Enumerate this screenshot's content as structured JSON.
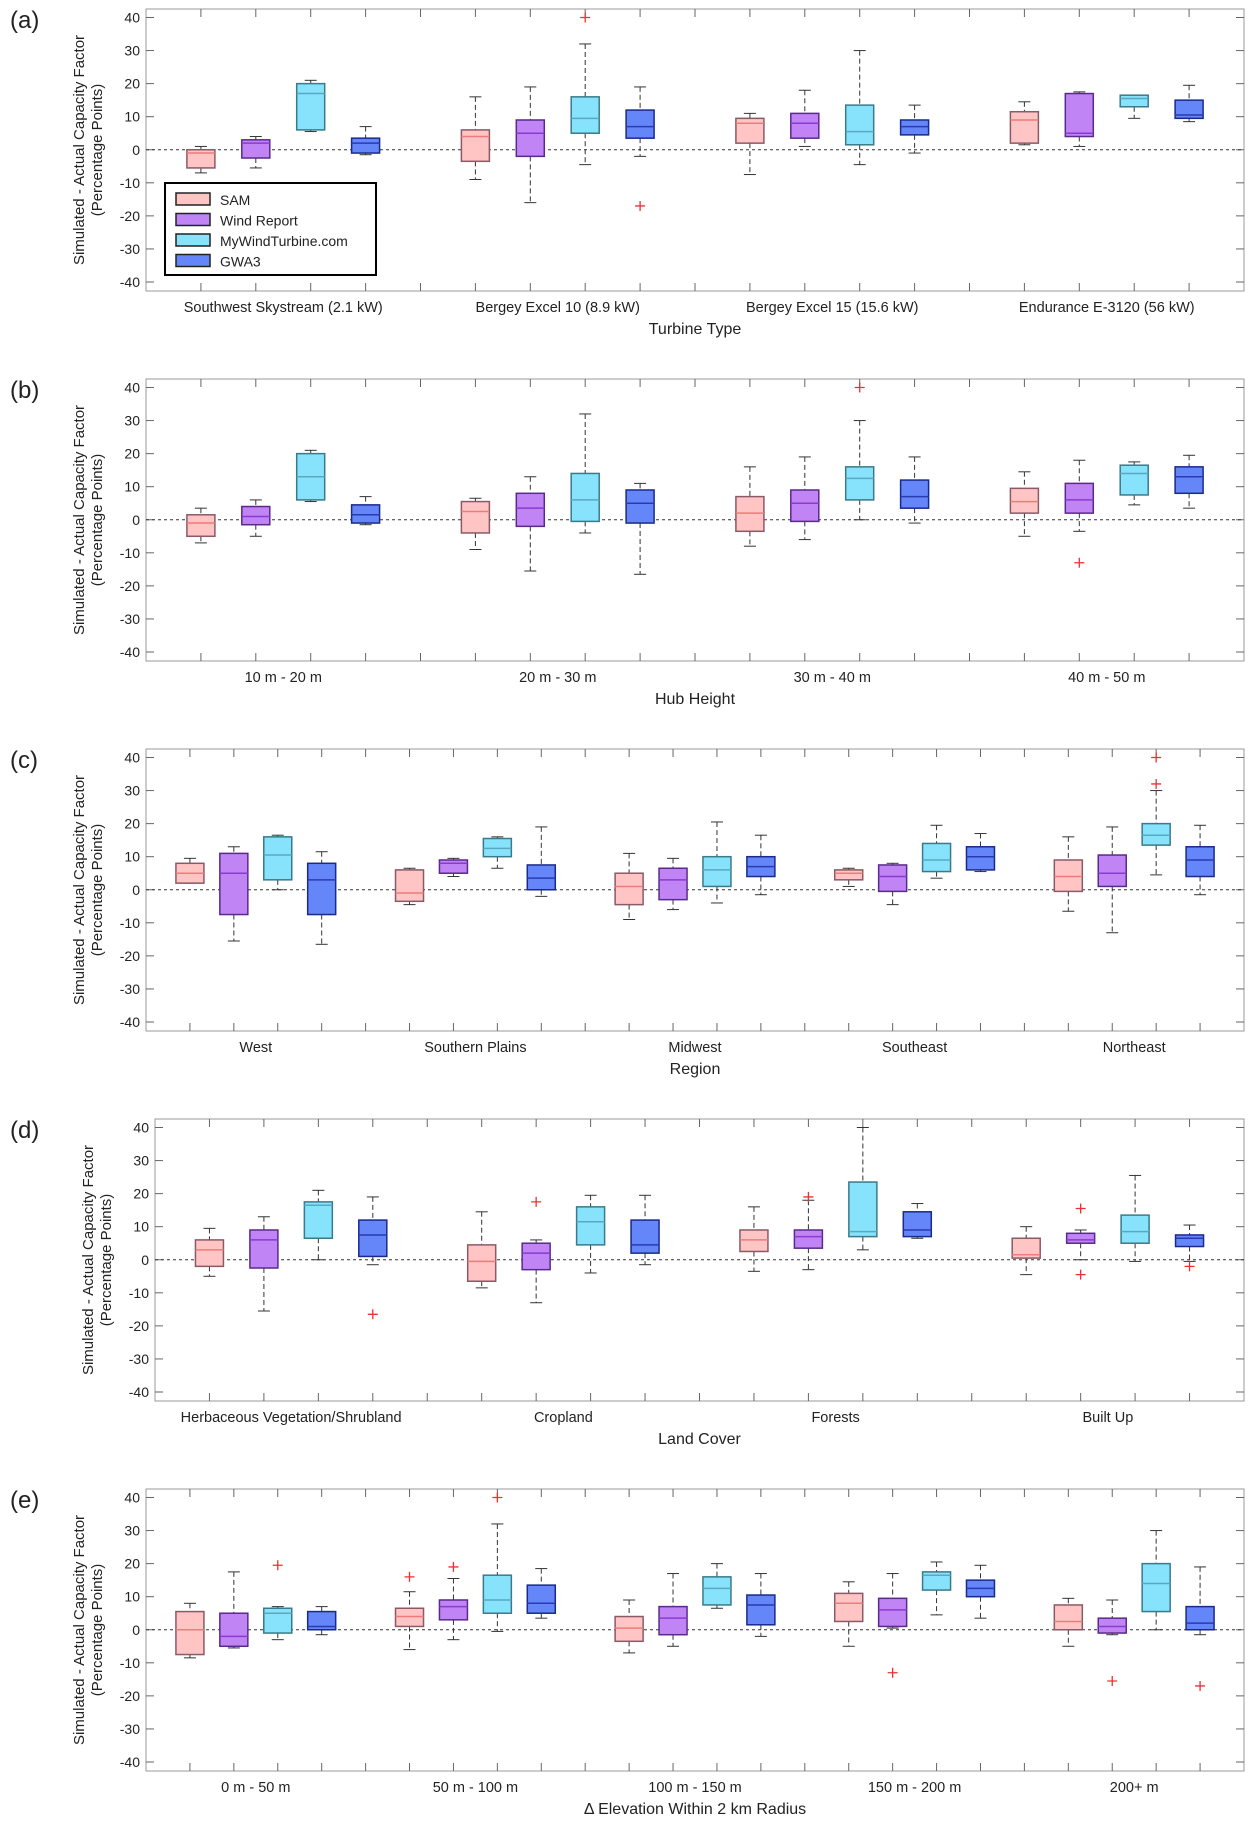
{
  "legend": {
    "entries": [
      "SAM",
      "Wind Report",
      "MyWindTurbine.com",
      "GWA3"
    ],
    "fills": [
      "#ffc4c4",
      "#c084f5",
      "#86e3fb",
      "#6486f8"
    ],
    "edges": [
      "#8a5a66",
      "#5a2a8a",
      "#3a7a8a",
      "#1a2a8a"
    ],
    "medians": [
      "#f07a7a",
      "#8a3ad0",
      "#5aa8c0",
      "#2a3ab0"
    ]
  },
  "stats_order": [
    "whisker_low",
    "q1",
    "median",
    "q3",
    "whisker_high"
  ],
  "chart_data": [
    {
      "type": "box",
      "panel": "(a)",
      "ylabel": [
        "Simulated - Actual Capacity Factor",
        "(Percentage Points)"
      ],
      "xlabel": "Turbine Type",
      "ylim": [
        -40,
        40
      ],
      "yticks": [
        40,
        30,
        20,
        10,
        0,
        -10,
        -20,
        -30,
        -40
      ],
      "legend": "lower-left",
      "categories": [
        "Southwest Skystream (2.1 kW)",
        "Bergey Excel 10 (8.9 kW)",
        "Bergey Excel 15 (15.6 kW)",
        "Endurance E-3120 (56 kW)"
      ],
      "series": [
        {
          "name": "SAM",
          "boxes": [
            [
              -7,
              -5.5,
              -1,
              0,
              1
            ],
            [
              -9,
              -3.5,
              4,
              6,
              16
            ],
            [
              -7.5,
              2,
              8,
              9.5,
              11
            ],
            [
              1.5,
              2,
              9,
              11.5,
              14.5
            ]
          ],
          "outliers": [
            [],
            [],
            [],
            []
          ]
        },
        {
          "name": "Wind Report",
          "boxes": [
            [
              -5.5,
              -2.5,
              2,
              3,
              4
            ],
            [
              -16,
              -2,
              5,
              9,
              19
            ],
            [
              1,
              3.5,
              8,
              11,
              18
            ],
            [
              1,
              4,
              5,
              17,
              17.5
            ]
          ],
          "outliers": [
            [],
            [],
            [],
            []
          ]
        },
        {
          "name": "MyWindTurbine.com",
          "boxes": [
            [
              5.5,
              6,
              17,
              20,
              21
            ],
            [
              -4.5,
              5,
              9.5,
              16,
              32
            ],
            [
              -4.5,
              1.5,
              5.5,
              13.5,
              30
            ],
            [
              9.5,
              13,
              15.5,
              16.5,
              16.5
            ]
          ],
          "outliers": [
            [],
            [
              40
            ],
            [],
            []
          ]
        },
        {
          "name": "GWA3",
          "boxes": [
            [
              -1.5,
              -1,
              2,
              3.5,
              7
            ],
            [
              -2,
              3.5,
              7,
              12,
              19
            ],
            [
              -1,
              4.5,
              7,
              9,
              13.5
            ],
            [
              8.5,
              9.5,
              10.5,
              15,
              19.5
            ]
          ],
          "outliers": [
            [],
            [
              -17
            ],
            [],
            []
          ]
        }
      ]
    },
    {
      "type": "box",
      "panel": "(b)",
      "ylabel": [
        "Simulated - Actual Capacity Factor",
        "(Percentage Points)"
      ],
      "xlabel": "Hub Height",
      "ylim": [
        -40,
        40
      ],
      "yticks": [
        40,
        30,
        20,
        10,
        0,
        -10,
        -20,
        -30,
        -40
      ],
      "categories": [
        "10 m - 20 m",
        "20 m - 30 m",
        "30 m - 40 m",
        "40 m - 50 m"
      ],
      "series": [
        {
          "name": "SAM",
          "boxes": [
            [
              -7,
              -5,
              -1,
              1.5,
              3.5
            ],
            [
              -9,
              -4,
              2.5,
              5.5,
              6.5
            ],
            [
              -8,
              -3.5,
              2,
              7,
              16
            ],
            [
              -5,
              2,
              5.5,
              9.5,
              14.5
            ]
          ],
          "outliers": [
            [],
            [],
            [],
            []
          ]
        },
        {
          "name": "Wind Report",
          "boxes": [
            [
              -5,
              -1.5,
              1,
              4,
              6
            ],
            [
              -15.5,
              -2,
              3.5,
              8,
              13
            ],
            [
              -6,
              -0.5,
              5,
              9,
              19
            ],
            [
              -3.5,
              2,
              6,
              11,
              18
            ]
          ],
          "outliers": [
            [],
            [],
            [],
            [
              -13
            ]
          ]
        },
        {
          "name": "MyWindTurbine.com",
          "boxes": [
            [
              5.5,
              6,
              13,
              20,
              21
            ],
            [
              -4,
              -0.5,
              6,
              14,
              32
            ],
            [
              0,
              6,
              12.5,
              16,
              30
            ],
            [
              4.5,
              7.5,
              14,
              16.5,
              17.5
            ]
          ],
          "outliers": [
            [],
            [],
            [
              40
            ],
            []
          ]
        },
        {
          "name": "GWA3",
          "boxes": [
            [
              -1.5,
              -1,
              1.5,
              4.5,
              7
            ],
            [
              -16.5,
              -1,
              5,
              9,
              11
            ],
            [
              -1,
              3.5,
              7,
              12,
              19
            ],
            [
              3.5,
              8,
              13,
              16,
              19.5
            ]
          ],
          "outliers": [
            [],
            [],
            [],
            []
          ]
        }
      ]
    },
    {
      "type": "box",
      "panel": "(c)",
      "ylabel": [
        "Simulated - Actual Capacity Factor",
        "(Percentage Points)"
      ],
      "xlabel": "Region",
      "ylim": [
        -40,
        40
      ],
      "yticks": [
        40,
        30,
        20,
        10,
        0,
        -10,
        -20,
        -30,
        -40
      ],
      "categories": [
        "West",
        "Southern Plains",
        "Midwest",
        "Southeast",
        "Northeast"
      ],
      "series": [
        {
          "name": "SAM",
          "boxes": [
            [
              2,
              2,
              5,
              8,
              9.5
            ],
            [
              -4.5,
              -3.5,
              -1,
              6,
              6.5
            ],
            [
              -9,
              -4.5,
              1,
              5,
              11
            ],
            [
              1,
              3,
              5,
              6,
              6.5
            ],
            [
              -6.5,
              -0.5,
              4,
              9,
              16
            ]
          ],
          "outliers": [
            [],
            [],
            [],
            [],
            []
          ]
        },
        {
          "name": "Wind Report",
          "boxes": [
            [
              -15.5,
              -7.5,
              5,
              11,
              13
            ],
            [
              4,
              5,
              8,
              9,
              9.5
            ],
            [
              -6,
              -3,
              3,
              6.5,
              9.5
            ],
            [
              -4.5,
              -0.5,
              4,
              7.5,
              8
            ],
            [
              -13,
              1,
              5,
              10.5,
              19
            ]
          ],
          "outliers": [
            [],
            [],
            [],
            [],
            []
          ]
        },
        {
          "name": "MyWindTurbine.com",
          "boxes": [
            [
              0,
              3,
              10.5,
              16,
              16.5
            ],
            [
              6.5,
              10,
              12.5,
              15.5,
              16
            ],
            [
              -4,
              1,
              6,
              10,
              20.5
            ],
            [
              3.5,
              5.5,
              9,
              14,
              19.5
            ],
            [
              4.5,
              13.5,
              16.5,
              20,
              30
            ]
          ],
          "outliers": [
            [],
            [],
            [],
            [],
            [
              40,
              32
            ]
          ]
        },
        {
          "name": "GWA3",
          "boxes": [
            [
              -16.5,
              -7.5,
              3,
              8,
              11.5
            ],
            [
              -2,
              0,
              3.5,
              7.5,
              19
            ],
            [
              -1.5,
              4,
              7,
              10,
              16.5
            ],
            [
              5.5,
              6,
              10,
              13,
              17
            ],
            [
              -1.5,
              4,
              9,
              13,
              19.5
            ]
          ],
          "outliers": [
            [],
            [],
            [],
            [],
            []
          ]
        }
      ]
    },
    {
      "type": "box",
      "panel": "(d)",
      "ylabel": [
        "Simulated - Actual Capacity Factor",
        "(Percentage Points)"
      ],
      "xlabel": "Land Cover",
      "ylim": [
        -40,
        40
      ],
      "yticks": [
        40,
        30,
        20,
        10,
        0,
        -10,
        -20,
        -30,
        -40
      ],
      "categories": [
        "Herbaceous Vegetation/Shrubland",
        "Cropland",
        "Forests",
        "Built Up"
      ],
      "series": [
        {
          "name": "SAM",
          "boxes": [
            [
              -5,
              -2,
              3,
              6,
              9.5
            ],
            [
              -8.5,
              -6.5,
              -0.5,
              4.5,
              14.5
            ],
            [
              -3.5,
              2.5,
              6,
              9,
              16
            ],
            [
              -4.5,
              0.5,
              1.5,
              6.5,
              10
            ]
          ],
          "outliers": [
            [],
            [],
            [],
            []
          ]
        },
        {
          "name": "Wind Report",
          "boxes": [
            [
              -15.5,
              -2.5,
              6,
              9,
              13
            ],
            [
              -13,
              -3,
              2,
              5,
              6
            ],
            [
              -3,
              3.5,
              7,
              9,
              18
            ],
            [
              0,
              5,
              6,
              8,
              9
            ]
          ],
          "outliers": [
            [],
            [
              17.5
            ],
            [
              19
            ],
            [
              15.5,
              -4.5
            ]
          ]
        },
        {
          "name": "MyWindTurbine.com",
          "boxes": [
            [
              0,
              6.5,
              16.5,
              17.5,
              21
            ],
            [
              -4,
              4.5,
              11.5,
              16,
              19.5
            ],
            [
              3,
              7,
              8.5,
              23.5,
              40
            ],
            [
              -0.5,
              5,
              8.5,
              13.5,
              25.5
            ]
          ],
          "outliers": [
            [],
            [],
            [],
            []
          ]
        },
        {
          "name": "GWA3",
          "boxes": [
            [
              -1.5,
              1,
              7.5,
              12,
              19
            ],
            [
              -1.5,
              2,
              4.5,
              12,
              19.5
            ],
            [
              6.5,
              7,
              9,
              14.5,
              17
            ],
            [
              -0.5,
              4,
              6.5,
              7.5,
              10.5
            ]
          ],
          "outliers": [
            [
              -16.5
            ],
            [],
            [],
            [
              -2
            ]
          ]
        }
      ]
    },
    {
      "type": "box",
      "panel": "(e)",
      "ylabel": [
        "Simulated - Actual Capacity Factor",
        "(Percentage Points)"
      ],
      "xlabel": "Δ Elevation Within 2 km Radius",
      "ylim": [
        -40,
        40
      ],
      "yticks": [
        40,
        30,
        20,
        10,
        0,
        -10,
        -20,
        -30,
        -40
      ],
      "categories": [
        "0 m - 50 m",
        "50 m - 100 m",
        "100 m - 150 m",
        "150 m - 200 m",
        "200+ m"
      ],
      "series": [
        {
          "name": "SAM",
          "boxes": [
            [
              -8.5,
              -7.5,
              0,
              5.5,
              8
            ],
            [
              -6,
              1,
              4,
              6.5,
              11.5
            ],
            [
              -7,
              -3.5,
              0.5,
              4,
              9
            ],
            [
              -5,
              2.5,
              8,
              11,
              14.5
            ],
            [
              -5,
              0,
              2.5,
              7.5,
              9.5
            ]
          ],
          "outliers": [
            [],
            [
              16
            ],
            [],
            [],
            []
          ]
        },
        {
          "name": "Wind Report",
          "boxes": [
            [
              -5.5,
              -5,
              -2,
              5,
              17.5
            ],
            [
              -3,
              3,
              7,
              9,
              15.5
            ],
            [
              -5,
              -1.5,
              3.5,
              7,
              17
            ],
            [
              0.5,
              1,
              6,
              9.5,
              17
            ],
            [
              -1.5,
              -1,
              1,
              3.5,
              9
            ]
          ],
          "outliers": [
            [],
            [
              19
            ],
            [],
            [
              -13
            ],
            [
              -15.5
            ]
          ]
        },
        {
          "name": "MyWindTurbine.com",
          "boxes": [
            [
              -3,
              -1,
              5,
              6.5,
              7
            ],
            [
              -0.5,
              5,
              9,
              16.5,
              32
            ],
            [
              6.5,
              7.5,
              12.5,
              16,
              20
            ],
            [
              4.5,
              12,
              16.5,
              17.5,
              20.5
            ],
            [
              0,
              5.5,
              14,
              20,
              30
            ]
          ],
          "outliers": [
            [
              19.5
            ],
            [
              40
            ],
            [],
            [],
            []
          ]
        },
        {
          "name": "GWA3",
          "boxes": [
            [
              -1.5,
              0,
              1,
              5.5,
              7
            ],
            [
              3.5,
              5,
              8,
              13.5,
              18.5
            ],
            [
              -2,
              1.5,
              7.5,
              10.5,
              17
            ],
            [
              3.5,
              10,
              12.5,
              15,
              19.5
            ],
            [
              -1.5,
              0,
              2,
              7,
              19
            ]
          ],
          "outliers": [
            [],
            [],
            [],
            [],
            [
              -17
            ]
          ]
        }
      ]
    }
  ]
}
